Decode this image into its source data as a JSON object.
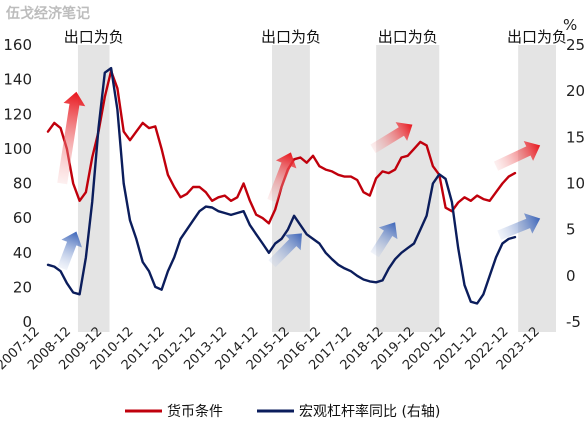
{
  "watermark": "伍戈经济笔记",
  "chart_data": {
    "type": "line",
    "title": "",
    "y_left": {
      "ticks": [
        0,
        20,
        40,
        60,
        80,
        100,
        120,
        140,
        160
      ],
      "range": [
        0,
        160
      ]
    },
    "y_right": {
      "label": "%",
      "ticks": [
        -5,
        0,
        5,
        10,
        15,
        20,
        25
      ],
      "range": [
        -5,
        25
      ]
    },
    "x_ticks": [
      "2007-12",
      "2008-12",
      "2009-12",
      "2010-12",
      "2011-12",
      "2012-12",
      "2013-12",
      "2014-12",
      "2015-12",
      "2016-12",
      "2017-12",
      "2018-12",
      "2019-12",
      "2020-12",
      "2021-12",
      "2022-12",
      "2023-12"
    ],
    "x_range": [
      2007.9,
      2024.0
    ],
    "bands": [
      {
        "label": "出口为负",
        "start": 2008.85,
        "end": 2009.85
      },
      {
        "label": "出口为负",
        "start": 2015.0,
        "end": 2016.2
      },
      {
        "label": "出口为负",
        "start": 2018.3,
        "end": 2020.3
      },
      {
        "label": "出口为负",
        "start": 2022.8,
        "end": 2024.0
      }
    ],
    "series": [
      {
        "name": "货币条件",
        "axis": "left",
        "color": "#c0000c",
        "x": [
          2007.9,
          2008.1,
          2008.3,
          2008.5,
          2008.7,
          2008.9,
          2009.1,
          2009.3,
          2009.5,
          2009.7,
          2009.9,
          2010.1,
          2010.3,
          2010.5,
          2010.7,
          2010.9,
          2011.1,
          2011.3,
          2011.5,
          2011.7,
          2011.9,
          2012.1,
          2012.3,
          2012.5,
          2012.7,
          2012.9,
          2013.1,
          2013.3,
          2013.5,
          2013.7,
          2013.9,
          2014.1,
          2014.3,
          2014.5,
          2014.7,
          2014.9,
          2015.1,
          2015.3,
          2015.5,
          2015.7,
          2015.9,
          2016.1,
          2016.3,
          2016.5,
          2016.7,
          2016.9,
          2017.1,
          2017.3,
          2017.5,
          2017.7,
          2017.9,
          2018.1,
          2018.3,
          2018.5,
          2018.7,
          2018.9,
          2019.1,
          2019.3,
          2019.5,
          2019.7,
          2019.9,
          2020.1,
          2020.3,
          2020.5,
          2020.7,
          2020.9,
          2021.1,
          2021.3,
          2021.5,
          2021.7,
          2021.9,
          2022.1,
          2022.3,
          2022.5,
          2022.7
        ],
        "values": [
          110,
          115,
          112,
          100,
          80,
          70,
          75,
          95,
          110,
          130,
          145,
          135,
          110,
          105,
          110,
          115,
          112,
          113,
          100,
          85,
          78,
          72,
          74,
          78,
          78,
          75,
          70,
          72,
          73,
          70,
          72,
          80,
          70,
          62,
          60,
          57,
          65,
          78,
          88,
          94,
          95,
          92,
          96,
          90,
          88,
          87,
          85,
          84,
          84,
          82,
          75,
          73,
          83,
          87,
          86,
          88,
          95,
          96,
          100,
          104,
          102,
          90,
          85,
          66,
          64,
          69,
          72,
          70,
          73,
          71,
          70,
          75,
          80,
          84,
          86
        ]
      },
      {
        "name": "宏观杠杆率同比 (右轴)",
        "axis": "right",
        "color": "#0b1d5c",
        "x": [
          2007.9,
          2008.1,
          2008.3,
          2008.5,
          2008.7,
          2008.9,
          2009.1,
          2009.3,
          2009.5,
          2009.7,
          2009.9,
          2010.1,
          2010.3,
          2010.5,
          2010.7,
          2010.9,
          2011.1,
          2011.3,
          2011.5,
          2011.7,
          2011.9,
          2012.1,
          2012.3,
          2012.5,
          2012.7,
          2012.9,
          2013.1,
          2013.3,
          2013.5,
          2013.7,
          2013.9,
          2014.1,
          2014.3,
          2014.5,
          2014.7,
          2014.9,
          2015.1,
          2015.3,
          2015.5,
          2015.7,
          2015.9,
          2016.1,
          2016.3,
          2016.5,
          2016.7,
          2016.9,
          2017.1,
          2017.3,
          2017.5,
          2017.7,
          2017.9,
          2018.1,
          2018.3,
          2018.5,
          2018.7,
          2018.9,
          2019.1,
          2019.3,
          2019.5,
          2019.7,
          2019.9,
          2020.1,
          2020.3,
          2020.5,
          2020.7,
          2020.9,
          2021.1,
          2021.3,
          2021.5,
          2021.7,
          2021.9,
          2022.1,
          2022.3,
          2022.5,
          2022.7
        ],
        "values": [
          1.2,
          1.0,
          0.5,
          -0.8,
          -1.8,
          -2.0,
          2.0,
          8.0,
          16.0,
          22.0,
          22.5,
          18.0,
          10.0,
          6.0,
          4.0,
          1.5,
          0.5,
          -1.2,
          -1.5,
          0.5,
          2.0,
          4.0,
          5.0,
          6.0,
          7.0,
          7.5,
          7.4,
          7.0,
          6.8,
          6.6,
          6.8,
          7.0,
          5.5,
          4.5,
          3.5,
          2.5,
          3.5,
          4.0,
          5.0,
          6.5,
          5.5,
          4.5,
          4.0,
          3.5,
          2.5,
          1.8,
          1.2,
          0.8,
          0.5,
          0.0,
          -0.4,
          -0.6,
          -0.7,
          -0.5,
          0.8,
          1.8,
          2.5,
          3.0,
          3.5,
          5.0,
          6.5,
          10.0,
          11.0,
          10.5,
          8.0,
          3.0,
          -1.0,
          -2.8,
          -3.0,
          -2.0,
          0.0,
          2.0,
          3.5,
          4.0,
          4.2
        ]
      }
    ],
    "arrows": [
      {
        "color": "red",
        "axis": "left",
        "from": [
          2008.35,
          80
        ],
        "to": [
          2008.8,
          133
        ]
      },
      {
        "color": "blue",
        "axis": "right",
        "from": [
          2008.35,
          0.8
        ],
        "to": [
          2008.8,
          4.8
        ]
      },
      {
        "color": "red",
        "axis": "left",
        "from": [
          2015.0,
          70
        ],
        "to": [
          2015.6,
          98
        ]
      },
      {
        "color": "blue",
        "axis": "right",
        "from": [
          2015.0,
          1.3
        ],
        "to": [
          2015.95,
          4.6
        ]
      },
      {
        "color": "red",
        "axis": "left",
        "from": [
          2018.2,
          100
        ],
        "to": [
          2019.45,
          114
        ]
      },
      {
        "color": "blue",
        "axis": "right",
        "from": [
          2018.25,
          2.3
        ],
        "to": [
          2018.9,
          5.8
        ]
      },
      {
        "color": "red",
        "axis": "left",
        "from": [
          2022.1,
          90
        ],
        "to": [
          2023.5,
          102
        ]
      },
      {
        "color": "blue",
        "axis": "right",
        "from": [
          2022.2,
          4.4
        ],
        "to": [
          2023.5,
          6.2
        ]
      }
    ],
    "legend": {
      "position": "bottom"
    }
  }
}
